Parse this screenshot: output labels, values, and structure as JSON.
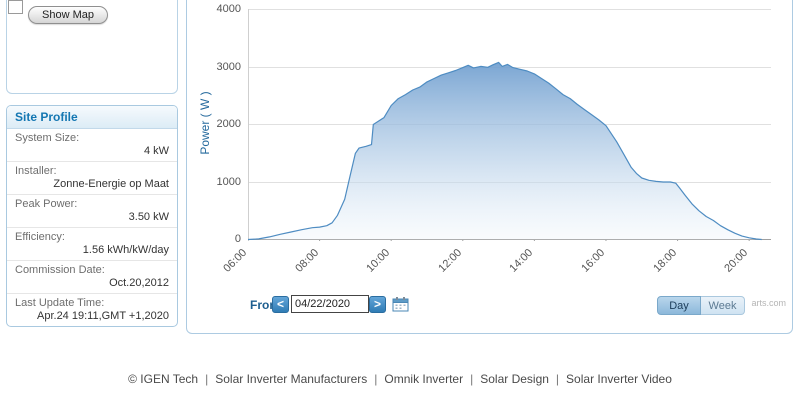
{
  "colors": {
    "accent_blue": "#2f7cb5",
    "panel_border": "#adcbe2",
    "title_blue": "#1477b2",
    "line": "#4e8cc2",
    "area_top": "#6f9ecf",
    "area_mid": "#b3cde7",
    "area_bottom": "#eef5fb",
    "grid": "#e0e0e0"
  },
  "map_panel": {
    "show_map_label": "Show Map"
  },
  "site_profile": {
    "title": "Site Profile",
    "rows": [
      {
        "label": "System Size:",
        "value": "4 kW"
      },
      {
        "label": "Installer:",
        "value": "Zonne-Energie op Maat"
      },
      {
        "label": "Peak Power:",
        "value": "3.50 kW"
      },
      {
        "label": "Efficiency:",
        "value": "1.56 kWh/kW/day"
      },
      {
        "label": "Commission Date:",
        "value": "Oct.20,2012"
      },
      {
        "label": "Last Update Time:",
        "value": "Apr.24 19:11,GMT +1,2020"
      }
    ]
  },
  "chart_data": {
    "type": "area",
    "title": "",
    "xlabel": "",
    "ylabel": "Power ( W )",
    "ylim": [
      0,
      4000
    ],
    "y_ticks": [
      0,
      1000,
      2000,
      3000,
      4000
    ],
    "x_ticks": [
      "06:00",
      "08:00",
      "10:00",
      "12:00",
      "14:00",
      "16:00",
      "18:00",
      "20:00"
    ],
    "x_range_hours": [
      6,
      20.61
    ],
    "grid": true,
    "legend": false,
    "watermark": "arts.com",
    "series": [
      {
        "name": "Power",
        "points": [
          [
            6.0,
            0
          ],
          [
            6.3,
            10
          ],
          [
            6.6,
            45
          ],
          [
            6.9,
            90
          ],
          [
            7.2,
            130
          ],
          [
            7.5,
            170
          ],
          [
            7.8,
            205
          ],
          [
            8.0,
            215
          ],
          [
            8.2,
            240
          ],
          [
            8.35,
            290
          ],
          [
            8.5,
            420
          ],
          [
            8.7,
            700
          ],
          [
            8.85,
            1100
          ],
          [
            9.0,
            1500
          ],
          [
            9.1,
            1590
          ],
          [
            9.3,
            1620
          ],
          [
            9.45,
            1650
          ],
          [
            9.5,
            2000
          ],
          [
            9.65,
            2060
          ],
          [
            9.8,
            2120
          ],
          [
            10.0,
            2330
          ],
          [
            10.2,
            2450
          ],
          [
            10.4,
            2520
          ],
          [
            10.6,
            2600
          ],
          [
            10.8,
            2650
          ],
          [
            11.0,
            2740
          ],
          [
            11.2,
            2800
          ],
          [
            11.4,
            2860
          ],
          [
            11.6,
            2900
          ],
          [
            11.8,
            2940
          ],
          [
            12.0,
            2990
          ],
          [
            12.15,
            3030
          ],
          [
            12.3,
            2985
          ],
          [
            12.5,
            3010
          ],
          [
            12.7,
            2995
          ],
          [
            12.85,
            3040
          ],
          [
            13.0,
            3080
          ],
          [
            13.1,
            3010
          ],
          [
            13.25,
            3045
          ],
          [
            13.4,
            2990
          ],
          [
            13.6,
            2960
          ],
          [
            13.8,
            2930
          ],
          [
            14.0,
            2880
          ],
          [
            14.2,
            2800
          ],
          [
            14.4,
            2720
          ],
          [
            14.6,
            2620
          ],
          [
            14.8,
            2520
          ],
          [
            15.0,
            2450
          ],
          [
            15.2,
            2350
          ],
          [
            15.4,
            2260
          ],
          [
            15.6,
            2170
          ],
          [
            15.8,
            2080
          ],
          [
            16.0,
            1980
          ],
          [
            16.15,
            1840
          ],
          [
            16.3,
            1700
          ],
          [
            16.5,
            1480
          ],
          [
            16.7,
            1260
          ],
          [
            16.85,
            1150
          ],
          [
            17.0,
            1070
          ],
          [
            17.2,
            1030
          ],
          [
            17.4,
            1010
          ],
          [
            17.6,
            1000
          ],
          [
            17.8,
            1000
          ],
          [
            17.95,
            980
          ],
          [
            18.05,
            900
          ],
          [
            18.2,
            780
          ],
          [
            18.4,
            620
          ],
          [
            18.6,
            500
          ],
          [
            18.8,
            400
          ],
          [
            19.0,
            330
          ],
          [
            19.2,
            240
          ],
          [
            19.4,
            170
          ],
          [
            19.6,
            110
          ],
          [
            19.8,
            60
          ],
          [
            20.0,
            30
          ],
          [
            20.2,
            8
          ],
          [
            20.35,
            0
          ]
        ]
      }
    ]
  },
  "controls": {
    "from_label": "From",
    "prev_label": "<",
    "next_label": ">",
    "date_value": "04/22/2020",
    "day_label": "Day",
    "week_label": "Week"
  },
  "footer": {
    "separator": "|",
    "items": [
      "© IGEN Tech",
      "Solar Inverter Manufacturers",
      "Omnik Inverter",
      "Solar Design",
      "Solar Inverter Video"
    ]
  }
}
